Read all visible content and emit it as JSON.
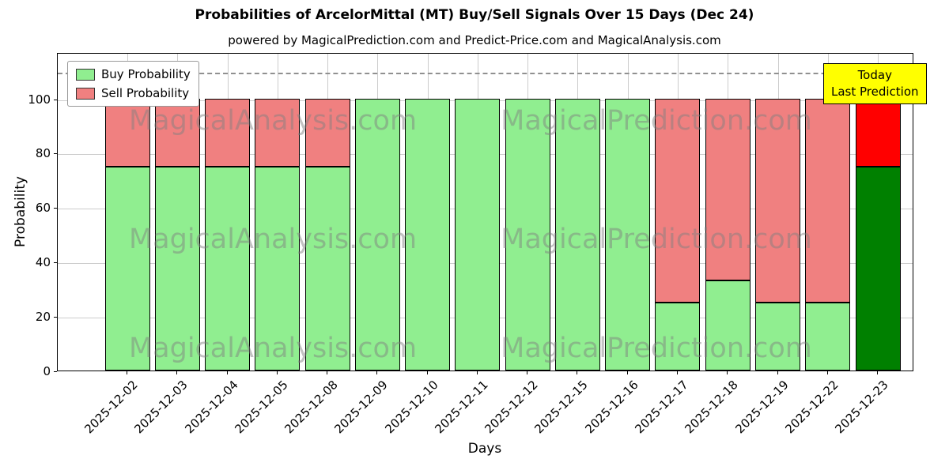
{
  "title": "Probabilities of ArcelorMittal (MT) Buy/Sell Signals Over 15 Days (Dec 24)",
  "subtitle": "powered by MagicalPrediction.com and Predict-Price.com and MagicalAnalysis.com",
  "legend": {
    "buy": "Buy Probability",
    "sell": "Sell Probability"
  },
  "annotation": {
    "line1": "Today",
    "line2": "Last Prediction"
  },
  "watermarks": [
    "MagicalAnalysis.com",
    "MagicalPrediction.com"
  ],
  "colors": {
    "buy": "#90EE90",
    "sell": "#F08080",
    "today_buy": "#008000",
    "today_sell": "#FF0000",
    "annotation_bg": "#FFFF00",
    "grid": "#cccccc",
    "dashed_line": "#909090",
    "watermark": "rgba(128,128,128,0.48)"
  },
  "chart_data": {
    "type": "bar",
    "stacked": true,
    "title": "Probabilities of ArcelorMittal (MT) Buy/Sell Signals Over 15 Days (Dec 24)",
    "xlabel": "Days",
    "ylabel": "Probability",
    "categories": [
      "2025-12-02",
      "2025-12-03",
      "2025-12-04",
      "2025-12-05",
      "2025-12-08",
      "2025-12-09",
      "2025-12-10",
      "2025-12-11",
      "2025-12-12",
      "2025-12-15",
      "2025-12-16",
      "2025-12-17",
      "2025-12-18",
      "2025-12-19",
      "2025-12-22",
      "2025-12-23"
    ],
    "series": [
      {
        "name": "Buy Probability",
        "values": [
          75,
          75,
          75,
          75,
          75,
          100,
          100,
          100,
          100,
          100,
          100,
          25,
          33,
          25,
          25,
          75
        ]
      },
      {
        "name": "Sell Probability",
        "values": [
          25,
          25,
          25,
          25,
          25,
          0,
          0,
          0,
          0,
          0,
          0,
          75,
          67,
          75,
          75,
          25
        ]
      }
    ],
    "highlight_index": 15,
    "yticks": [
      0,
      20,
      40,
      60,
      80,
      100
    ],
    "ylim": [
      0,
      117
    ],
    "dashed_line_y": 110,
    "grid": true,
    "legend_position": "upper-left"
  }
}
